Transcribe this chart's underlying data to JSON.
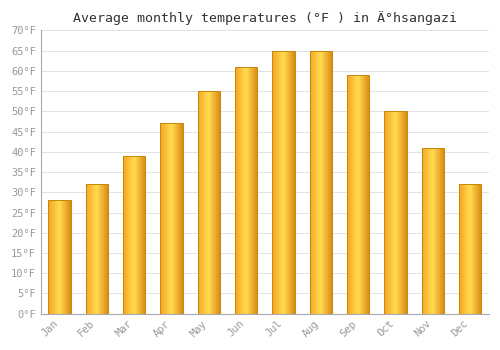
{
  "title": "Average monthly temperatures (°F ) in Ä°hsangazi",
  "months": [
    "Jan",
    "Feb",
    "Mar",
    "Apr",
    "May",
    "Jun",
    "Jul",
    "Aug",
    "Sep",
    "Oct",
    "Nov",
    "Dec"
  ],
  "values": [
    28,
    32,
    39,
    47,
    55,
    61,
    65,
    65,
    59,
    50,
    41,
    32
  ],
  "bar_color_left": "#F5A623",
  "bar_color_center": "#FFD966",
  "bar_color_right": "#E8931A",
  "bar_edge_color": "#C8860A",
  "background_color": "#FFFFFF",
  "plot_bg_color": "#FFFFFF",
  "grid_color": "#DDDDDD",
  "ylim": [
    0,
    70
  ],
  "yticks": [
    0,
    5,
    10,
    15,
    20,
    25,
    30,
    35,
    40,
    45,
    50,
    55,
    60,
    65,
    70
  ],
  "ytick_labels": [
    "0°F",
    "5°F",
    "10°F",
    "15°F",
    "20°F",
    "25°F",
    "30°F",
    "35°F",
    "40°F",
    "45°F",
    "50°F",
    "55°F",
    "60°F",
    "65°F",
    "70°F"
  ],
  "title_fontsize": 9.5,
  "tick_fontsize": 7.5,
  "tick_font": "monospace",
  "tick_color": "#999999",
  "title_color": "#333333"
}
